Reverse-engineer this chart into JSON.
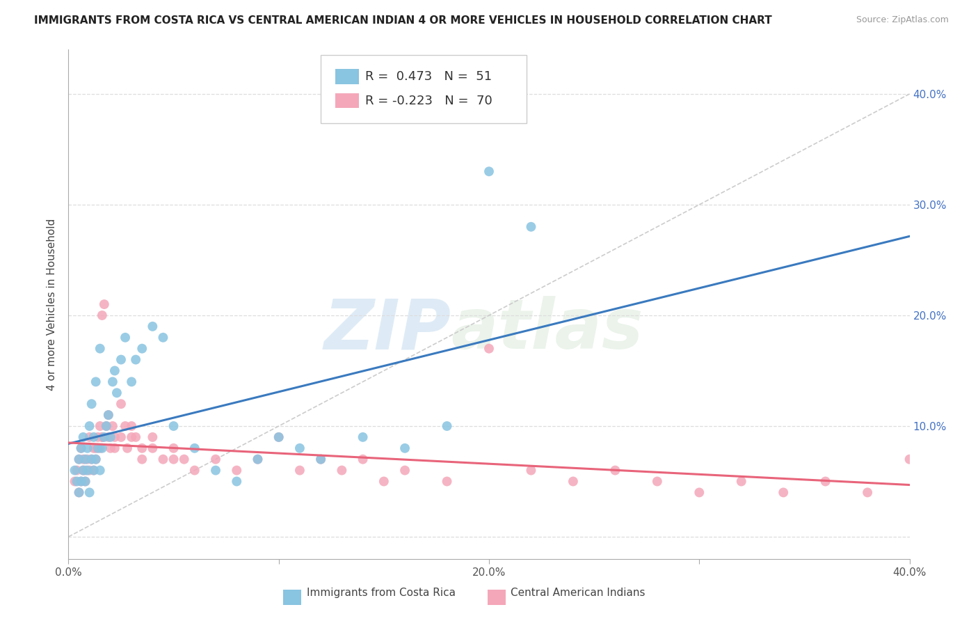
{
  "title": "IMMIGRANTS FROM COSTA RICA VS CENTRAL AMERICAN INDIAN 4 OR MORE VEHICLES IN HOUSEHOLD CORRELATION CHART",
  "source": "Source: ZipAtlas.com",
  "ylabel": "4 or more Vehicles in Household",
  "xlim": [
    0.0,
    0.4
  ],
  "ylim": [
    -0.02,
    0.44
  ],
  "xticks": [
    0.0,
    0.1,
    0.2,
    0.3,
    0.4
  ],
  "yticks_right": [
    0.0,
    0.1,
    0.2,
    0.3,
    0.4
  ],
  "ytick_labels_right": [
    "",
    "10.0%",
    "20.0%",
    "30.0%",
    "40.0%"
  ],
  "xtick_labels": [
    "0.0%",
    "",
    "20.0%",
    "",
    "40.0%"
  ],
  "legend_blue_label": "Immigrants from Costa Rica",
  "legend_pink_label": "Central American Indians",
  "R_blue": 0.473,
  "N_blue": 51,
  "R_pink": -0.223,
  "N_pink": 70,
  "blue_color": "#89c4e1",
  "pink_color": "#f4a7b9",
  "blue_line_color": "#3a7abf",
  "pink_line_color": "#e8647a",
  "diagonal_line_color": "#cccccc",
  "blue_scatter_x": [
    0.003,
    0.004,
    0.005,
    0.005,
    0.006,
    0.006,
    0.007,
    0.007,
    0.008,
    0.008,
    0.009,
    0.009,
    0.01,
    0.01,
    0.011,
    0.011,
    0.012,
    0.012,
    0.013,
    0.013,
    0.014,
    0.015,
    0.015,
    0.016,
    0.017,
    0.018,
    0.019,
    0.02,
    0.021,
    0.022,
    0.023,
    0.025,
    0.027,
    0.03,
    0.032,
    0.035,
    0.04,
    0.045,
    0.05,
    0.06,
    0.07,
    0.08,
    0.09,
    0.1,
    0.11,
    0.12,
    0.14,
    0.16,
    0.18,
    0.2,
    0.22
  ],
  "blue_scatter_y": [
    0.06,
    0.05,
    0.04,
    0.07,
    0.05,
    0.08,
    0.06,
    0.09,
    0.05,
    0.07,
    0.06,
    0.08,
    0.04,
    0.1,
    0.07,
    0.12,
    0.06,
    0.09,
    0.07,
    0.14,
    0.08,
    0.06,
    0.17,
    0.08,
    0.09,
    0.1,
    0.11,
    0.09,
    0.14,
    0.15,
    0.13,
    0.16,
    0.18,
    0.14,
    0.16,
    0.17,
    0.19,
    0.18,
    0.1,
    0.08,
    0.06,
    0.05,
    0.07,
    0.09,
    0.08,
    0.07,
    0.09,
    0.08,
    0.1,
    0.33,
    0.28
  ],
  "pink_scatter_x": [
    0.003,
    0.004,
    0.005,
    0.005,
    0.006,
    0.006,
    0.007,
    0.007,
    0.008,
    0.008,
    0.009,
    0.01,
    0.01,
    0.011,
    0.012,
    0.012,
    0.013,
    0.014,
    0.015,
    0.015,
    0.016,
    0.016,
    0.017,
    0.018,
    0.019,
    0.02,
    0.021,
    0.022,
    0.025,
    0.027,
    0.03,
    0.032,
    0.035,
    0.04,
    0.045,
    0.05,
    0.055,
    0.06,
    0.07,
    0.08,
    0.09,
    0.1,
    0.11,
    0.12,
    0.13,
    0.14,
    0.15,
    0.16,
    0.18,
    0.2,
    0.22,
    0.24,
    0.26,
    0.28,
    0.3,
    0.32,
    0.34,
    0.36,
    0.38,
    0.4,
    0.013,
    0.016,
    0.019,
    0.022,
    0.025,
    0.028,
    0.03,
    0.035,
    0.04,
    0.05
  ],
  "pink_scatter_y": [
    0.05,
    0.06,
    0.04,
    0.07,
    0.05,
    0.08,
    0.06,
    0.07,
    0.05,
    0.06,
    0.07,
    0.06,
    0.09,
    0.07,
    0.06,
    0.08,
    0.07,
    0.09,
    0.08,
    0.1,
    0.2,
    0.09,
    0.21,
    0.1,
    0.11,
    0.08,
    0.1,
    0.09,
    0.12,
    0.1,
    0.1,
    0.09,
    0.08,
    0.09,
    0.07,
    0.08,
    0.07,
    0.06,
    0.07,
    0.06,
    0.07,
    0.09,
    0.06,
    0.07,
    0.06,
    0.07,
    0.05,
    0.06,
    0.05,
    0.17,
    0.06,
    0.05,
    0.06,
    0.05,
    0.04,
    0.05,
    0.04,
    0.05,
    0.04,
    0.07,
    0.08,
    0.09,
    0.09,
    0.08,
    0.09,
    0.08,
    0.09,
    0.07,
    0.08,
    0.07
  ],
  "watermark_zip": "ZIP",
  "watermark_atlas": "atlas",
  "background_color": "#ffffff",
  "grid_color": "#dddddd",
  "title_fontsize": 11,
  "label_fontsize": 11,
  "tick_fontsize": 11,
  "source_fontsize": 9
}
